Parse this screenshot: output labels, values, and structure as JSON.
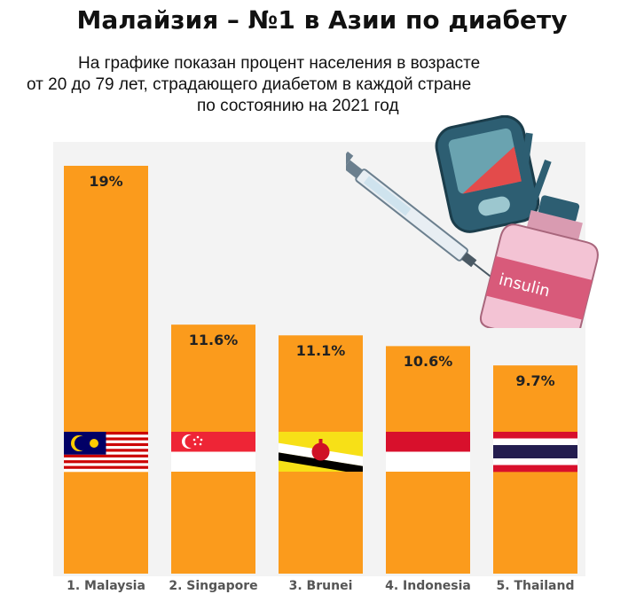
{
  "header": {
    "title": "Малайзия – №1 в Азии по диабету",
    "subtitle_lines": [
      "На графике показан процент населения в возрасте",
      "от 20 до 79 лет, страдающего диабетом в каждой стране",
      "по состоянию на 2021 год"
    ]
  },
  "illustration": {
    "insulin_label": "insulin"
  },
  "colors": {
    "bar": "#fb9b1c",
    "background": "#f3f3f3"
  },
  "chart_data": {
    "type": "bar",
    "title": "",
    "categories": [
      "1. Malaysia",
      "2. Singapore",
      "3. Brunei",
      "4. Indonesia",
      "5. Thailand"
    ],
    "values": [
      19,
      11.6,
      11.1,
      10.6,
      9.7
    ],
    "value_labels": [
      "19%",
      "11.6%",
      "11.1%",
      "10.6%",
      "9.7%"
    ],
    "flags": [
      "malaysia-flag",
      "singapore-flag",
      "brunei-flag",
      "indonesia-flag",
      "thailand-flag"
    ],
    "xlabel": "",
    "ylabel": "",
    "ylim": [
      0,
      20
    ],
    "grid": false,
    "legend": "none"
  }
}
